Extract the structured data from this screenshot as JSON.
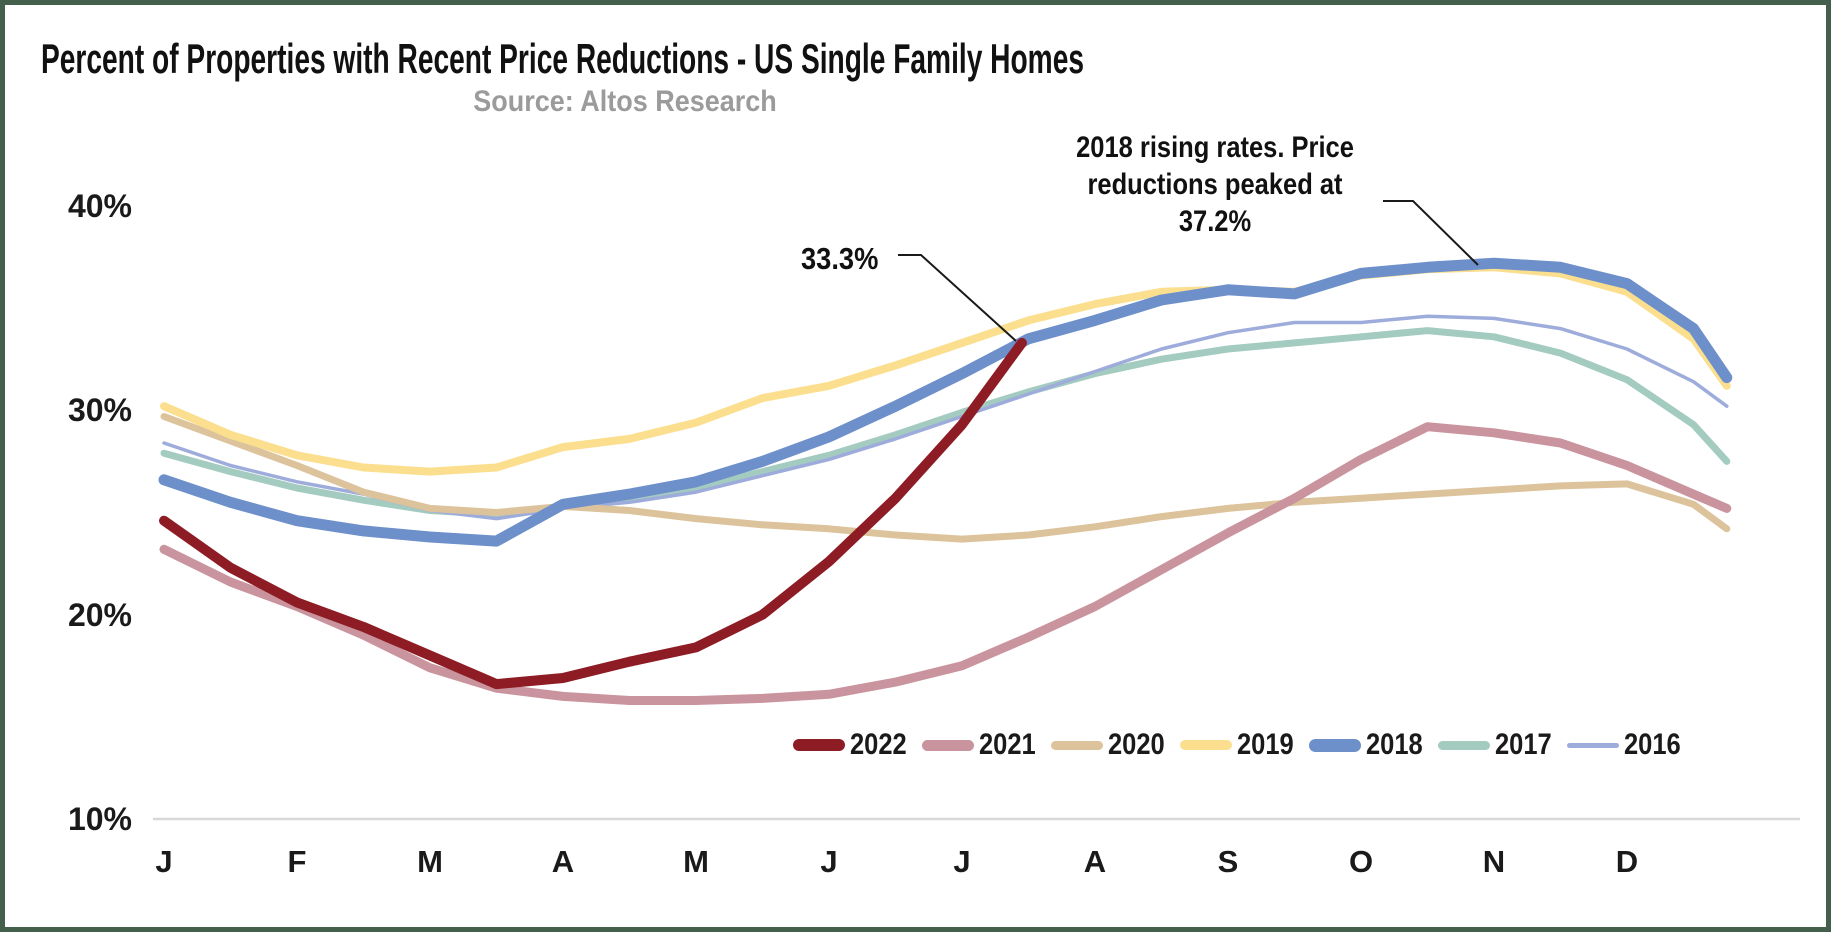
{
  "header": {
    "title": "Percent of Properties with Recent Price Reductions - US Single Family Homes",
    "source": "Source: Altos Research"
  },
  "chart_data": {
    "type": "line",
    "title": "Percent of Properties with Recent Price Reductions - US Single Family Homes",
    "subtitle": "Source: Altos Research",
    "x_axis": {
      "unit": "month",
      "tick_labels": [
        "J",
        "F",
        "M",
        "A",
        "M",
        "J",
        "J",
        "A",
        "S",
        "O",
        "N",
        "D"
      ]
    },
    "y_axis": {
      "min": 10,
      "max": 40,
      "ticks": [
        {
          "label": "40%",
          "value": 40
        },
        {
          "label": "30%",
          "value": 30
        },
        {
          "label": "20%",
          "value": 20
        },
        {
          "label": "10%",
          "value": 10
        }
      ],
      "gridline_at": 10
    },
    "annotations": {
      "latest_2022": {
        "text": "33.3%",
        "series": "2022"
      },
      "peak_2018": {
        "lines": [
          "2018 rising rates. Price",
          "reductions peaked at",
          "37.2%"
        ],
        "series": "2018"
      }
    },
    "series": [
      {
        "name": "2017",
        "color": "#a4cbc0",
        "line_width": 7,
        "x": [
          0,
          0.5,
          1,
          1.5,
          2,
          2.5,
          3,
          3.5,
          4,
          4.5,
          5,
          5.5,
          6,
          6.5,
          7,
          7.5,
          8,
          8.5,
          9,
          9.5,
          10,
          10.5,
          11,
          11.5,
          11.75
        ],
        "values": [
          27.9,
          27.0,
          26.2,
          25.6,
          25.1,
          24.9,
          25.3,
          25.6,
          26.2,
          27.0,
          27.8,
          28.8,
          29.9,
          30.9,
          31.8,
          32.5,
          33.0,
          33.3,
          33.6,
          33.9,
          33.6,
          32.8,
          31.5,
          29.3,
          27.5
        ]
      },
      {
        "name": "2016",
        "color": "#9dacdb",
        "line_width": 3.5,
        "x": [
          0,
          0.5,
          1,
          1.5,
          2,
          2.5,
          3,
          3.5,
          4,
          4.5,
          5,
          5.5,
          6,
          6.5,
          7,
          7.5,
          8,
          8.5,
          9,
          9.5,
          10,
          10.5,
          11,
          11.5,
          11.75
        ],
        "values": [
          28.4,
          27.3,
          26.5,
          25.9,
          25.1,
          24.7,
          25.2,
          25.5,
          26.0,
          26.8,
          27.6,
          28.6,
          29.7,
          30.8,
          31.9,
          33.0,
          33.8,
          34.3,
          34.3,
          34.6,
          34.5,
          34.0,
          33.0,
          31.4,
          30.2
        ]
      },
      {
        "name": "2020",
        "color": "#dcc39c",
        "line_width": 7,
        "x": [
          0,
          0.5,
          1,
          1.5,
          2,
          2.5,
          3,
          3.5,
          4,
          4.5,
          5,
          5.5,
          6,
          6.5,
          7,
          7.5,
          8,
          8.5,
          9,
          9.5,
          10,
          10.5,
          11,
          11.5,
          11.75
        ],
        "values": [
          29.7,
          28.5,
          27.3,
          26.0,
          25.2,
          25.0,
          25.3,
          25.1,
          24.7,
          24.4,
          24.2,
          23.9,
          23.7,
          23.9,
          24.3,
          24.8,
          25.2,
          25.5,
          25.7,
          25.9,
          26.1,
          26.3,
          26.4,
          25.4,
          24.2
        ]
      },
      {
        "name": "2021",
        "color": "#c9949e",
        "line_width": 9,
        "x": [
          0,
          0.5,
          1,
          1.5,
          2,
          2.5,
          3,
          3.5,
          4,
          4.5,
          5,
          5.5,
          6,
          6.5,
          7,
          7.5,
          8,
          8.5,
          9,
          9.5,
          10,
          10.5,
          11,
          11.5,
          11.75
        ],
        "values": [
          23.2,
          21.6,
          20.4,
          19.0,
          17.4,
          16.4,
          16.0,
          15.8,
          15.8,
          15.9,
          16.1,
          16.7,
          17.5,
          18.9,
          20.4,
          22.2,
          24.0,
          25.7,
          27.6,
          29.2,
          28.9,
          28.4,
          27.3,
          25.9,
          25.2
        ]
      },
      {
        "name": "2019",
        "color": "#fbdf8e",
        "line_width": 8,
        "x": [
          0,
          0.5,
          1,
          1.5,
          2,
          2.5,
          3,
          3.5,
          4,
          4.5,
          5,
          5.5,
          6,
          6.5,
          7,
          7.5,
          8,
          8.5,
          9,
          9.5,
          10,
          10.5,
          11,
          11.5,
          11.75
        ],
        "values": [
          30.2,
          28.8,
          27.8,
          27.2,
          27.0,
          27.2,
          28.2,
          28.6,
          29.4,
          30.6,
          31.2,
          32.2,
          33.3,
          34.4,
          35.2,
          35.8,
          35.9,
          35.8,
          36.6,
          36.9,
          37.0,
          36.7,
          35.8,
          33.5,
          31.2
        ]
      },
      {
        "name": "2018",
        "color": "#6d8fca",
        "line_width": 11,
        "x": [
          0,
          0.5,
          1,
          1.5,
          2,
          2.5,
          3,
          3.5,
          4,
          4.5,
          5,
          5.5,
          6,
          6.5,
          7,
          7.5,
          8,
          8.5,
          9,
          9.5,
          10,
          10.5,
          11,
          11.5,
          11.75
        ],
        "values": [
          26.6,
          25.5,
          24.6,
          24.1,
          23.8,
          23.6,
          25.4,
          25.9,
          26.5,
          27.5,
          28.7,
          30.2,
          31.8,
          33.5,
          34.4,
          35.4,
          35.9,
          35.7,
          36.7,
          37.0,
          37.2,
          37.0,
          36.2,
          34.0,
          31.6
        ]
      },
      {
        "name": "2022",
        "color": "#8e1c24",
        "line_width": 10,
        "x": [
          0,
          0.5,
          1,
          1.5,
          2,
          2.5,
          3,
          3.5,
          4,
          4.5,
          5,
          5.5,
          6,
          6.45
        ],
        "values": [
          24.6,
          22.3,
          20.6,
          19.4,
          18.0,
          16.6,
          16.9,
          17.7,
          18.4,
          20.0,
          22.6,
          25.7,
          29.3,
          33.3
        ]
      }
    ],
    "legend": {
      "position": "bottom-center-inside",
      "entries": [
        "2022",
        "2021",
        "2020",
        "2019",
        "2018",
        "2017",
        "2016"
      ]
    }
  }
}
